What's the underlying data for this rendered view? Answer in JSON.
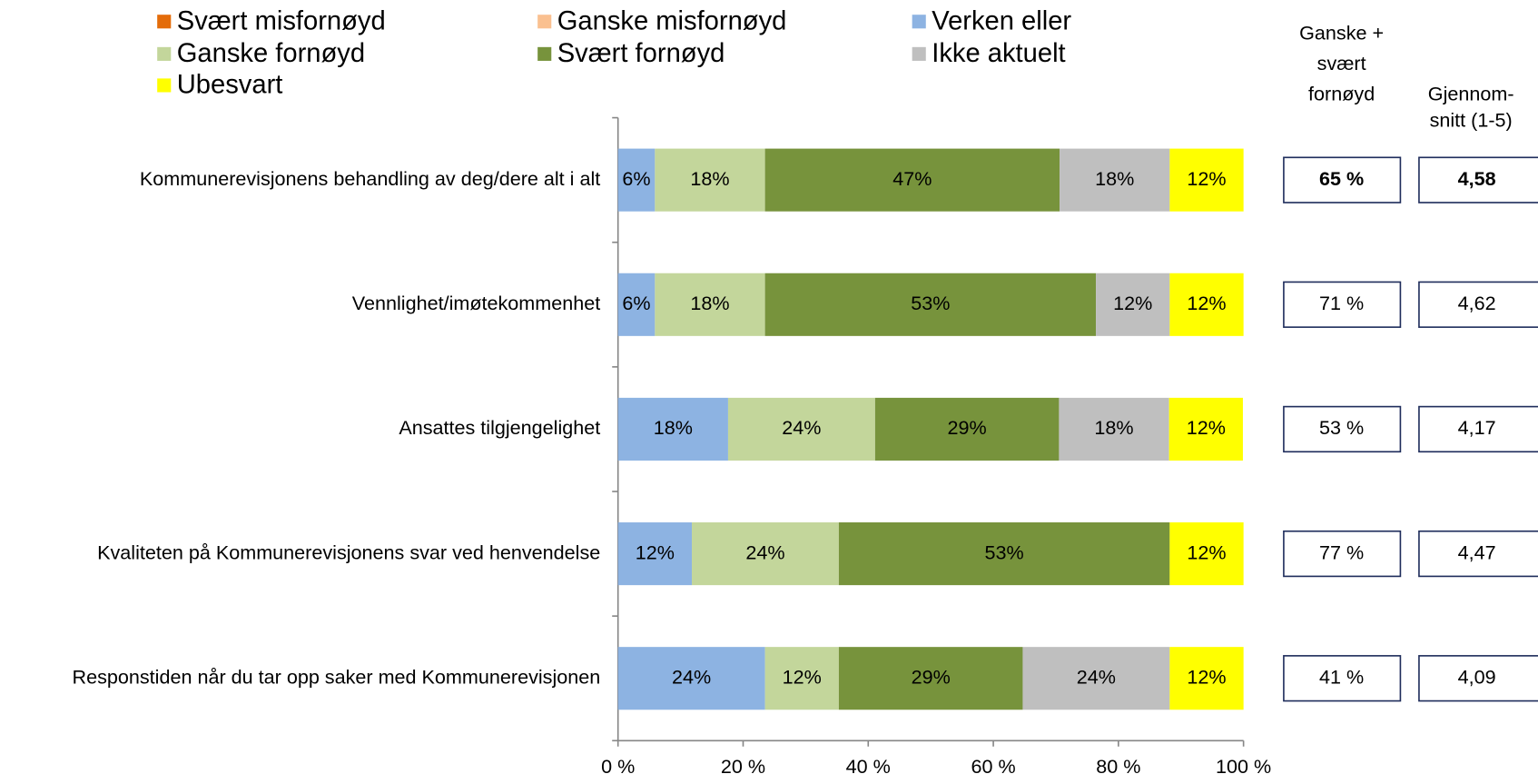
{
  "chart_data": {
    "type": "stacked-barh",
    "categories": [
      "Kommunerevisjonens behandling av deg/dere alt i alt",
      "Vennlighet/imøtekommenhet",
      "Ansattes tilgjengelighet",
      "Kvaliteten på Kommunerevisjonens svar ved henvendelse",
      "Responstiden når du tar opp saker med Kommunerevisjonen"
    ],
    "series": [
      {
        "name": "Svært misfornøyd",
        "color": "#e46c0a",
        "values": [
          null,
          null,
          null,
          null,
          null
        ],
        "value_labels": [
          null,
          null,
          null,
          null,
          null
        ]
      },
      {
        "name": "Ganske misfornøyd",
        "color": "#fac090",
        "values": [
          null,
          null,
          null,
          null,
          null
        ],
        "value_labels": [
          null,
          null,
          null,
          null,
          null
        ]
      },
      {
        "name": "Verken eller",
        "color": "#8db3e2",
        "values": [
          5.9,
          5.9,
          17.6,
          11.8,
          23.5
        ],
        "value_labels": [
          "6%",
          "6%",
          "18%",
          "12%",
          "24%"
        ]
      },
      {
        "name": "Ganske fornøyd",
        "color": "#c3d69b",
        "values": [
          17.6,
          17.6,
          23.5,
          23.5,
          11.8
        ],
        "value_labels": [
          "18%",
          "18%",
          "24%",
          "24%",
          "12%"
        ]
      },
      {
        "name": "Svært fornøyd",
        "color": "#77933c",
        "values": [
          47.1,
          52.9,
          29.4,
          52.9,
          29.4
        ],
        "value_labels": [
          "47%",
          "53%",
          "29%",
          "53%",
          "29%"
        ]
      },
      {
        "name": "Ikke aktuelt",
        "color": "#bfbfbf",
        "values": [
          17.6,
          11.8,
          17.6,
          null,
          23.5
        ],
        "value_labels": [
          "18%",
          "12%",
          "18%",
          null,
          "24%"
        ]
      },
      {
        "name": "Ubesvart",
        "color": "#ffff00",
        "values": [
          11.8,
          11.8,
          11.8,
          11.8,
          11.8
        ],
        "value_labels": [
          "12%",
          "12%",
          "12%",
          "12%",
          "12%"
        ]
      }
    ],
    "xlim": [
      0,
      100
    ],
    "xticks": [
      {
        "value": 0,
        "label": "0 %"
      },
      {
        "value": 20,
        "label": "20 %"
      },
      {
        "value": 40,
        "label": "40 %"
      },
      {
        "value": 60,
        "label": "60 %"
      },
      {
        "value": 80,
        "label": "80 %"
      },
      {
        "value": 100,
        "label": "100 %"
      }
    ],
    "summary_columns": [
      {
        "title": [
          "Ganske +",
          "svært",
          "fornøyd"
        ],
        "values": [
          65,
          71,
          53,
          77,
          41
        ],
        "value_labels": [
          "65 %",
          "71 %",
          "53 %",
          "77 %",
          "41 %"
        ]
      },
      {
        "title": [
          "Gjennom-",
          "snitt (1-5)"
        ],
        "values": [
          4.58,
          4.62,
          4.17,
          4.47,
          4.09
        ],
        "value_labels": [
          "4,58",
          "4,62",
          "4,17",
          "4,47",
          "4,09"
        ]
      }
    ],
    "bold_row": 0
  }
}
